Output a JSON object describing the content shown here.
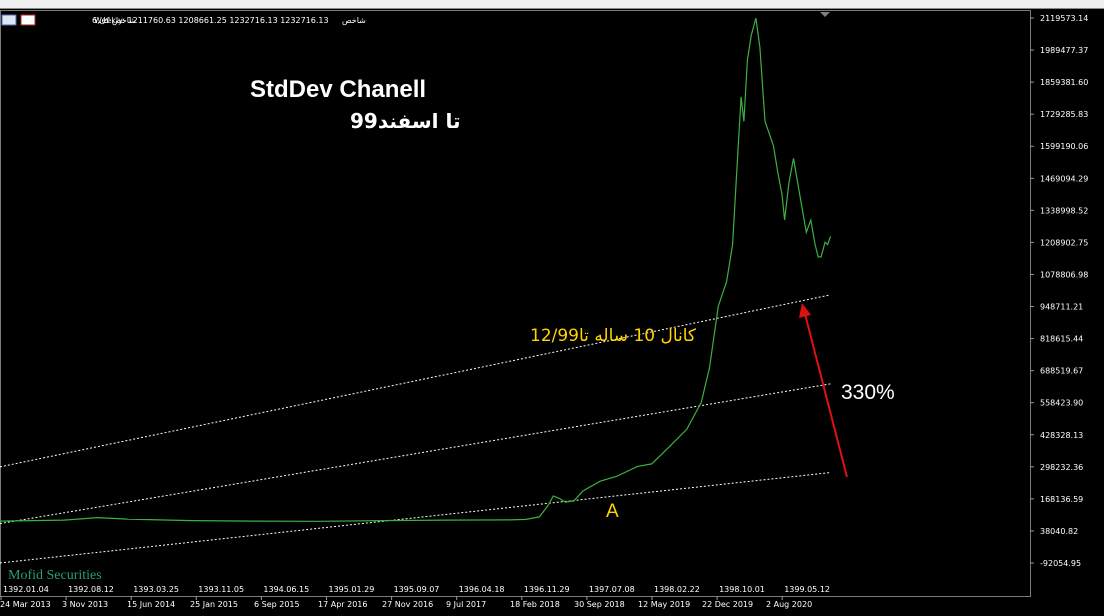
{
  "header": {
    "symbol": "شاخص کل,6",
    "info": "Weekly:  1211760.63 1208661.25 1232716.13 1232716.13",
    "indicator": "شاخص"
  },
  "annotations": {
    "title_line1": "StdDev Chanell",
    "title_line2": "تا اسفند99",
    "channel_label": "کانال 10 ساله تا12/99",
    "percent_label": "330%",
    "point_label": "A",
    "watermark": "Mofid Securities"
  },
  "colors": {
    "background": "#000000",
    "price": "#3cb043",
    "annotation_yellow": "#ffd400",
    "arrow": "#e01010",
    "channel": "#ffffff"
  },
  "chart_data": {
    "type": "line",
    "ylim": [
      -92054.95,
      2119573.14
    ],
    "y_ticks": [
      2119573.14,
      1989477.37,
      1859381.6,
      1729285.83,
      1599190.06,
      1469094.29,
      1338998.52,
      1208902.75,
      1078806.98,
      948711.21,
      818615.44,
      688519.67,
      558423.9,
      428328.13,
      298232.36,
      168136.59,
      38040.82,
      -92054.95
    ],
    "y_tick_labels": [
      "2119573.14",
      "1989477.37",
      "1859381.60",
      "1729285.83",
      "1599190.06",
      "1469094.29",
      "1338998.52",
      "1208902.75",
      "1078806.98",
      "948711.21",
      "818615.44",
      "688519.67",
      "558423.90",
      "428328.13",
      "298232.36",
      "168136.59",
      "38040.82",
      "-92054.95"
    ],
    "x_labels_top": [
      "1392.01.04",
      "1392.08.12",
      "1393.03.25",
      "1393.11.05",
      "1394.06.15",
      "1395.01.29",
      "1395.09.07",
      "1396.04.18",
      "1396.11.29",
      "1397.07.08",
      "1398.02.22",
      "1398.10.01",
      "1399.05.12"
    ],
    "x_labels_bottom": [
      "24 Mar 2013",
      "3 Nov 2013",
      "15 Jun 2014",
      "25 Jan 2015",
      "6 Sep 2015",
      "17 Apr 2016",
      "27 Nov 2016",
      "9 Jul 2017",
      "18 Feb 2018",
      "30 Sep 2018",
      "12 May 2019",
      "22 Dec 2019",
      "2 Aug 2020"
    ],
    "series": [
      {
        "x": [
          "2013-03-24",
          "2013-11-03",
          "2014-01-15",
          "2014-03-01",
          "2014-06-15",
          "2015-01-25",
          "2015-09-06",
          "2016-04-17",
          "2016-11-27",
          "2017-07-09",
          "2018-02-18",
          "2018-04-15",
          "2018-06-01",
          "2018-07-01",
          "2018-07-20",
          "2018-08-10",
          "2018-09-01",
          "2018-09-30",
          "2018-11-01",
          "2019-01-01",
          "2019-03-01",
          "2019-05-12",
          "2019-07-01",
          "2019-09-01",
          "2019-11-01",
          "2019-12-22",
          "2020-01-20",
          "2020-02-20",
          "2020-03-20",
          "2020-04-10",
          "2020-04-25",
          "2020-05-10",
          "2020-05-20",
          "2020-06-01",
          "2020-06-15",
          "2020-07-01",
          "2020-07-15",
          "2020-07-27",
          "2020-08-02",
          "2020-08-17",
          "2020-09-01",
          "2020-09-15",
          "2020-10-01",
          "2020-10-10",
          "2020-10-25",
          "2020-11-10",
          "2020-11-25",
          "2020-12-10",
          "2020-12-25",
          "2021-01-10",
          "2021-01-25",
          "2021-02-05",
          "2021-02-15",
          "2021-03-01",
          "2021-03-10",
          "2021-03-20"
        ],
        "y": [
          78000,
          82000,
          88000,
          92000,
          86000,
          80000,
          78000,
          77000,
          80000,
          82000,
          83000,
          85000,
          95000,
          140000,
          180000,
          170000,
          155000,
          160000,
          200000,
          240000,
          260000,
          300000,
          310000,
          380000,
          450000,
          560000,
          700000,
          950000,
          1050000,
          1200000,
          1500000,
          1800000,
          1700000,
          1950000,
          2050000,
          2119000,
          2000000,
          1800000,
          1700000,
          1650000,
          1600000,
          1500000,
          1400000,
          1300000,
          1450000,
          1550000,
          1450000,
          1350000,
          1250000,
          1300000,
          1200000,
          1150000,
          1150000,
          1210000,
          1200000,
          1232716
        ]
      }
    ],
    "channel_lines": [
      {
        "x": [
          "2013-03-24",
          "2021-03-20"
        ],
        "y": [
          298000,
          996000
        ]
      },
      {
        "x": [
          "2013-03-24",
          "2021-03-20"
        ],
        "y": [
          68000,
          635000
        ]
      },
      {
        "x": [
          "2013-03-24",
          "2021-03-20"
        ],
        "y": [
          -92000,
          275000
        ]
      }
    ]
  }
}
